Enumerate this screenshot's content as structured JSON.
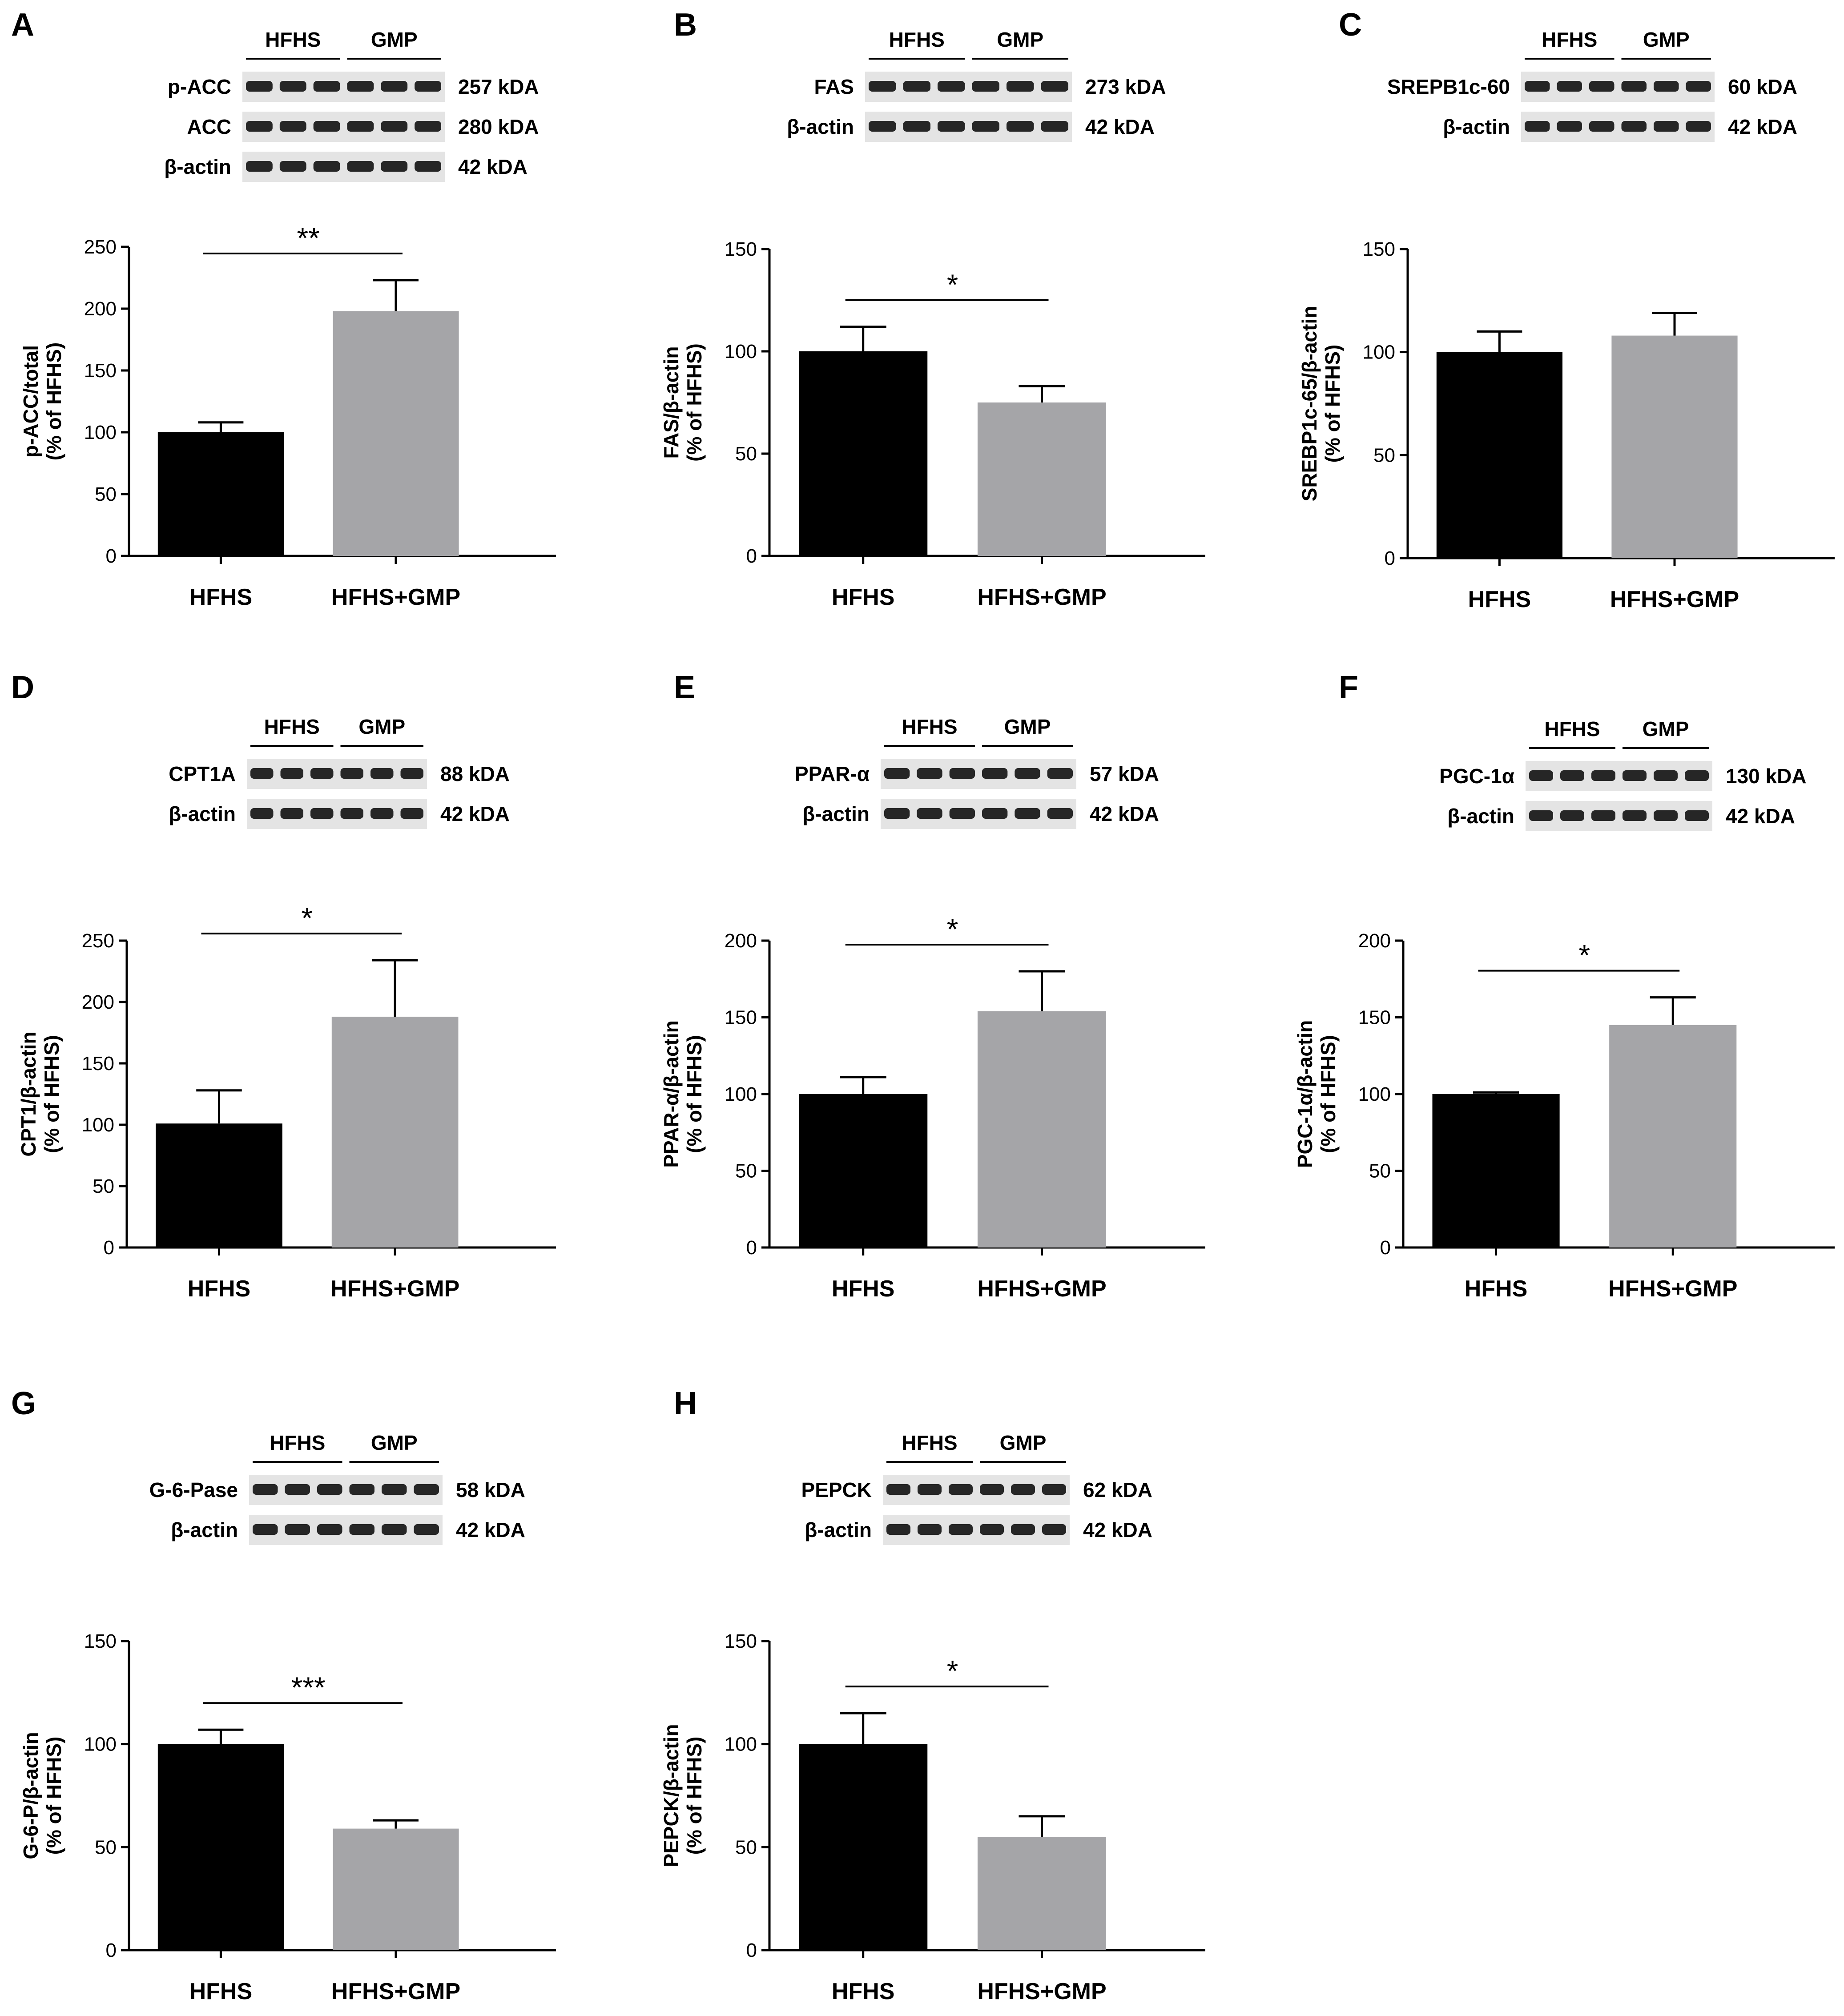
{
  "chart_data": [
    {
      "panel": "A",
      "type": "bar",
      "categories": [
        "HFHS",
        "HFHS+GMP"
      ],
      "values": [
        100,
        198
      ],
      "errors": [
        8,
        25
      ],
      "colors": [
        "#000000",
        "#a5a5a8"
      ],
      "ylabel_line1": "p-ACC/total",
      "ylabel_line2": "(% of HFHS)",
      "ylim": [
        0,
        250
      ],
      "yticks": [
        "0",
        "50",
        "100",
        "150",
        "200",
        "250"
      ],
      "significance": "**",
      "blot": {
        "groups": [
          "HFHS",
          "GMP"
        ],
        "rows": [
          {
            "label": "p-ACC",
            "kda": "257 kDA"
          },
          {
            "label": "ACC",
            "kda": "280 kDA"
          },
          {
            "label": "β-actin",
            "kda": "42 kDA"
          }
        ]
      }
    },
    {
      "panel": "B",
      "type": "bar",
      "categories": [
        "HFHS",
        "HFHS+GMP"
      ],
      "values": [
        100,
        75
      ],
      "errors": [
        12,
        8
      ],
      "colors": [
        "#000000",
        "#a5a5a8"
      ],
      "ylabel_line1": "FAS/β-actin",
      "ylabel_line2": "(% of HFHS)",
      "ylim": [
        0,
        150
      ],
      "yticks": [
        "0",
        "50",
        "100",
        "150"
      ],
      "significance": "*",
      "blot": {
        "groups": [
          "HFHS",
          "GMP"
        ],
        "rows": [
          {
            "label": "FAS",
            "kda": "273 kDA"
          },
          {
            "label": "β-actin",
            "kda": "42 kDA"
          }
        ]
      }
    },
    {
      "panel": "C",
      "type": "bar",
      "categories": [
        "HFHS",
        "HFHS+GMP"
      ],
      "values": [
        100,
        108
      ],
      "errors": [
        10,
        11
      ],
      "colors": [
        "#000000",
        "#a5a5a8"
      ],
      "ylabel_line1": "SREBP1c-65/β-actin",
      "ylabel_line2": "(% of HFHS)",
      "ylim": [
        0,
        150
      ],
      "yticks": [
        "0",
        "50",
        "100",
        "150"
      ],
      "significance": "",
      "blot": {
        "groups": [
          "HFHS",
          "GMP"
        ],
        "rows": [
          {
            "label": "SREPB1c-60",
            "kda": "60 kDA"
          },
          {
            "label": "β-actin",
            "kda": "42 kDA"
          }
        ]
      }
    },
    {
      "panel": "D",
      "type": "bar",
      "categories": [
        "HFHS",
        "HFHS+GMP"
      ],
      "values": [
        101,
        188
      ],
      "errors": [
        27,
        46
      ],
      "colors": [
        "#000000",
        "#a5a5a8"
      ],
      "ylabel_line1": "CPT1/β-actin",
      "ylabel_line2": "(% of HFHS)",
      "ylim": [
        0,
        250
      ],
      "yticks": [
        "0",
        "50",
        "100",
        "150",
        "200",
        "250"
      ],
      "significance": "*",
      "blot": {
        "groups": [
          "HFHS",
          "GMP"
        ],
        "rows": [
          {
            "label": "CPT1A",
            "kda": "88 kDA"
          },
          {
            "label": "β-actin",
            "kda": "42 kDA"
          }
        ]
      }
    },
    {
      "panel": "E",
      "type": "bar",
      "categories": [
        "HFHS",
        "HFHS+GMP"
      ],
      "values": [
        100,
        154
      ],
      "errors": [
        11,
        26
      ],
      "colors": [
        "#000000",
        "#a5a5a8"
      ],
      "ylabel_line1": "PPAR-α/β-actin",
      "ylabel_line2": "(% of HFHS)",
      "ylim": [
        0,
        200
      ],
      "yticks": [
        "0",
        "50",
        "100",
        "150",
        "200"
      ],
      "significance": "*",
      "blot": {
        "groups": [
          "HFHS",
          "GMP"
        ],
        "rows": [
          {
            "label": "PPAR-α",
            "kda": "57 kDA"
          },
          {
            "label": "β-actin",
            "kda": "42 kDA"
          }
        ]
      }
    },
    {
      "panel": "F",
      "type": "bar",
      "categories": [
        "HFHS",
        "HFHS+GMP"
      ],
      "values": [
        100,
        145
      ],
      "errors": [
        1,
        18
      ],
      "colors": [
        "#000000",
        "#a5a5a8"
      ],
      "ylabel_line1": "PGC-1α/β-actin",
      "ylabel_line2": "(% of HFHS)",
      "ylim": [
        0,
        200
      ],
      "yticks": [
        "0",
        "50",
        "100",
        "150",
        "200"
      ],
      "significance": "*",
      "blot": {
        "groups": [
          "HFHS",
          "GMP"
        ],
        "rows": [
          {
            "label": "PGC-1α",
            "kda": "130 kDA"
          },
          {
            "label": "β-actin",
            "kda": "42 kDA"
          }
        ]
      }
    },
    {
      "panel": "G",
      "type": "bar",
      "categories": [
        "HFHS",
        "HFHS+GMP"
      ],
      "values": [
        100,
        59
      ],
      "errors": [
        7,
        4
      ],
      "colors": [
        "#000000",
        "#a5a5a8"
      ],
      "ylabel_line1": "G-6-P/β-actin",
      "ylabel_line2": "(% of HFHS)",
      "ylim": [
        0,
        150
      ],
      "yticks": [
        "0",
        "50",
        "100",
        "150"
      ],
      "significance": "***",
      "blot": {
        "groups": [
          "HFHS",
          "GMP"
        ],
        "rows": [
          {
            "label": "G-6-Pase",
            "kda": "58 kDA"
          },
          {
            "label": "β-actin",
            "kda": "42 kDA"
          }
        ]
      }
    },
    {
      "panel": "H",
      "type": "bar",
      "categories": [
        "HFHS",
        "HFHS+GMP"
      ],
      "values": [
        100,
        55
      ],
      "errors": [
        15,
        10
      ],
      "colors": [
        "#000000",
        "#a5a5a8"
      ],
      "ylabel_line1": "PEPCK/β-actin",
      "ylabel_line2": "(% of HFHS)",
      "ylim": [
        0,
        150
      ],
      "yticks": [
        "0",
        "50",
        "100",
        "150"
      ],
      "significance": "*",
      "blot": {
        "groups": [
          "HFHS",
          "GMP"
        ],
        "rows": [
          {
            "label": "PEPCK",
            "kda": "62 kDA"
          },
          {
            "label": "β-actin",
            "kda": "42 kDA"
          }
        ]
      }
    }
  ]
}
